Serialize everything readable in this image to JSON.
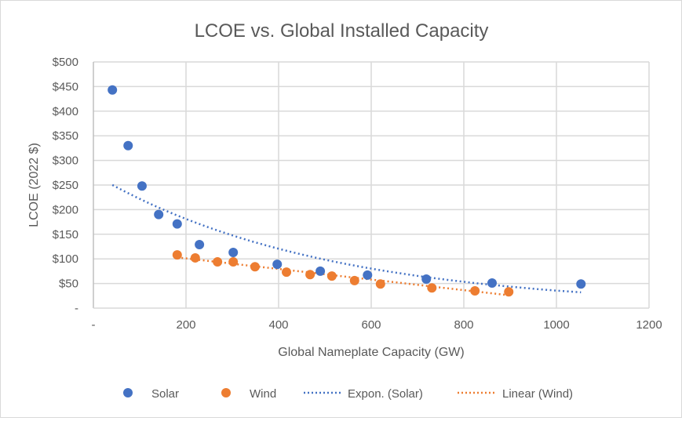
{
  "chart_data": {
    "type": "scatter",
    "title": "LCOE vs. Global Installed Capacity",
    "xlabel": "Global Nameplate Capacity (GW)",
    "ylabel": "LCOE (2022 $)",
    "xlim": [
      0,
      1200
    ],
    "ylim": [
      0,
      500
    ],
    "grid": true,
    "legend_position": "bottom",
    "x_ticks": [
      {
        "value": 0,
        "label": "-"
      },
      {
        "value": 200,
        "label": "200"
      },
      {
        "value": 400,
        "label": "400"
      },
      {
        "value": 600,
        "label": "600"
      },
      {
        "value": 800,
        "label": "800"
      },
      {
        "value": 1000,
        "label": "1000"
      },
      {
        "value": 1200,
        "label": "1200"
      }
    ],
    "y_ticks": [
      {
        "value": 0,
        "label": "-"
      },
      {
        "value": 50,
        "label": "$50"
      },
      {
        "value": 100,
        "label": "$100"
      },
      {
        "value": 150,
        "label": "$150"
      },
      {
        "value": 200,
        "label": "$200"
      },
      {
        "value": 250,
        "label": "$250"
      },
      {
        "value": 300,
        "label": "$300"
      },
      {
        "value": 350,
        "label": "$350"
      },
      {
        "value": 400,
        "label": "$400"
      },
      {
        "value": 450,
        "label": "$450"
      },
      {
        "value": 500,
        "label": "$500"
      }
    ],
    "series": [
      {
        "name": "Solar",
        "color": "#4472c4",
        "x": [
          41,
          75,
          105,
          141,
          181,
          229,
          302,
          397,
          490,
          592,
          719,
          861,
          1053
        ],
        "y": [
          443,
          330,
          248,
          190,
          171,
          129,
          113,
          89,
          75,
          67,
          59,
          51,
          49
        ]
      },
      {
        "name": "Wind",
        "color": "#ed7d31",
        "x": [
          181,
          220,
          268,
          302,
          349,
          417,
          468,
          515,
          564,
          620,
          731,
          824,
          897
        ],
        "y": [
          108,
          102,
          94,
          94,
          84,
          73,
          68,
          65,
          56,
          49,
          41,
          35,
          33
        ]
      }
    ],
    "trendlines": [
      {
        "name": "Expon. (Solar)",
        "type": "exponential",
        "color": "#4472c4",
        "a": 272,
        "b": -0.002034,
        "x_range": [
          41,
          1053
        ]
      },
      {
        "name": "Linear (Wind)",
        "type": "linear",
        "color": "#ed7d31",
        "slope": -0.1075,
        "intercept": 122.5,
        "x_range": [
          181,
          897
        ]
      }
    ]
  }
}
